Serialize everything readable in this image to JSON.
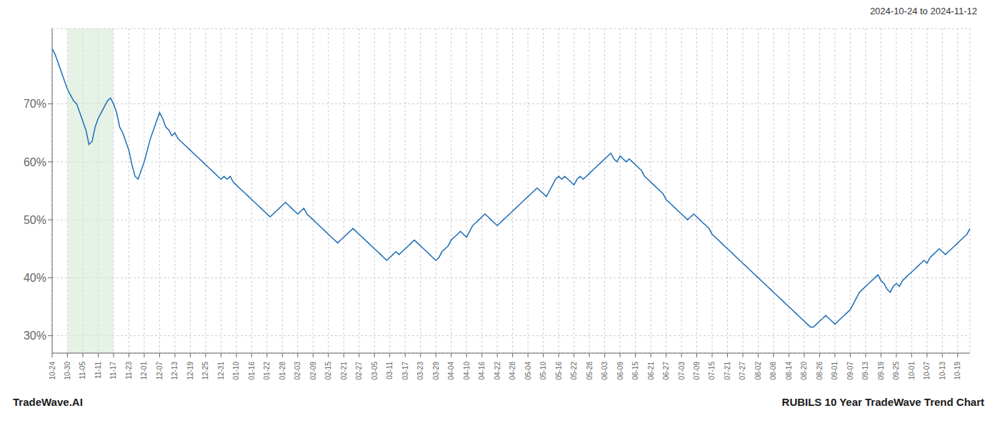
{
  "chart_data": {
    "type": "line",
    "title": "2024-10-24 to 2024-11-12",
    "annotations": [
      {
        "text": "TradeWave.AI",
        "position": "bottom left"
      },
      {
        "text": "RUBILS 10 Year TradeWave Trend Chart",
        "position": "bottom right"
      }
    ],
    "x": [
      0,
      1,
      2,
      3,
      4,
      5,
      6,
      7,
      8,
      9,
      10,
      11,
      12,
      13,
      14,
      15,
      16,
      17,
      18,
      19,
      20,
      21,
      22,
      23,
      24,
      25,
      26,
      27,
      28,
      29,
      30,
      31,
      32,
      33,
      34,
      35,
      36,
      37,
      38,
      39,
      40,
      41,
      42,
      43,
      44,
      45,
      46,
      47,
      48,
      49,
      50,
      51,
      52,
      53,
      54,
      55,
      56,
      57,
      58,
      59,
      60,
      61,
      62,
      63,
      64,
      65,
      66,
      67,
      68,
      69,
      70,
      71,
      72,
      73,
      74,
      75,
      76,
      77,
      78,
      79,
      80,
      81,
      82,
      83,
      84,
      85,
      86,
      87,
      88,
      89,
      90,
      91,
      92,
      93,
      94,
      95,
      96,
      97,
      98,
      99,
      100,
      101,
      102,
      103,
      104,
      105,
      106,
      107,
      108,
      109,
      110,
      111,
      112,
      113,
      114,
      115,
      116,
      117,
      118,
      119,
      120,
      121,
      122,
      123,
      124,
      125,
      126,
      127,
      128,
      129,
      130,
      131,
      132,
      133,
      134,
      135,
      136,
      137,
      138,
      139,
      140,
      141,
      142,
      143,
      144,
      145,
      146,
      147,
      148,
      149,
      150,
      151,
      152,
      153,
      154,
      155,
      156,
      157,
      158,
      159,
      160,
      161,
      162,
      163,
      164,
      165,
      166,
      167,
      168,
      169,
      170,
      171,
      172,
      173,
      174,
      175,
      176,
      177,
      178,
      179,
      180,
      181,
      182,
      183,
      184,
      185,
      186,
      187,
      188,
      189,
      190,
      191,
      192,
      193,
      194,
      195,
      196,
      197,
      198,
      199,
      200,
      201,
      202,
      203,
      204,
      205,
      206,
      207,
      208,
      209,
      210,
      211,
      212,
      213,
      214,
      215,
      216,
      217,
      218,
      219,
      220,
      221,
      222,
      223,
      224,
      225,
      226,
      227,
      228,
      229,
      230,
      231,
      232,
      233,
      234,
      235,
      236,
      237,
      238,
      239,
      240,
      241,
      242,
      243,
      244,
      245,
      246,
      247,
      248,
      249,
      250,
      251,
      252,
      253,
      254,
      255,
      256,
      257,
      258,
      259,
      260,
      261,
      262,
      263,
      264,
      265,
      266,
      267,
      268,
      269,
      270,
      271,
      272,
      273,
      274,
      275,
      276,
      277,
      278,
      279,
      280,
      281,
      282,
      283,
      284,
      285,
      286,
      287,
      288,
      289,
      290,
      291,
      292,
      293,
      294,
      295,
      296,
      297,
      298,
      299
    ],
    "values": [
      79.5,
      78.5,
      77.0,
      75.5,
      74.0,
      72.5,
      71.5,
      70.5,
      70.0,
      68.5,
      67.0,
      65.5,
      63.0,
      63.5,
      66.0,
      67.5,
      68.5,
      69.5,
      70.5,
      71.0,
      70.0,
      68.5,
      66.0,
      65.0,
      63.5,
      62.0,
      59.5,
      57.5,
      57.0,
      58.5,
      60.0,
      62.0,
      64.0,
      65.5,
      67.0,
      68.5,
      67.5,
      66.0,
      65.5,
      64.5,
      65.0,
      64.0,
      63.5,
      63.0,
      62.5,
      62.0,
      61.5,
      61.0,
      60.5,
      60.0,
      59.5,
      59.0,
      58.5,
      58.0,
      57.5,
      57.0,
      57.5,
      57.0,
      57.5,
      56.5,
      56.0,
      55.5,
      55.0,
      54.5,
      54.0,
      53.5,
      53.0,
      52.5,
      52.0,
      51.5,
      51.0,
      50.5,
      51.0,
      51.5,
      52.0,
      52.5,
      53.0,
      52.5,
      52.0,
      51.5,
      51.0,
      51.5,
      52.0,
      51.0,
      50.5,
      50.0,
      49.5,
      49.0,
      48.5,
      48.0,
      47.5,
      47.0,
      46.5,
      46.0,
      46.5,
      47.0,
      47.5,
      48.0,
      48.5,
      48.0,
      47.5,
      47.0,
      46.5,
      46.0,
      45.5,
      45.0,
      44.5,
      44.0,
      43.5,
      43.0,
      43.5,
      44.0,
      44.5,
      44.0,
      44.5,
      45.0,
      45.5,
      46.0,
      46.5,
      46.0,
      45.5,
      45.0,
      44.5,
      44.0,
      43.5,
      43.0,
      43.5,
      44.5,
      45.0,
      45.5,
      46.5,
      47.0,
      47.5,
      48.0,
      47.5,
      47.0,
      48.0,
      49.0,
      49.5,
      50.0,
      50.5,
      51.0,
      50.5,
      50.0,
      49.5,
      49.0,
      49.5,
      50.0,
      50.5,
      51.0,
      51.5,
      52.0,
      52.5,
      53.0,
      53.5,
      54.0,
      54.5,
      55.0,
      55.5,
      55.0,
      54.5,
      54.0,
      55.0,
      56.0,
      57.0,
      57.5,
      57.0,
      57.5,
      57.0,
      56.5,
      56.0,
      57.0,
      57.5,
      57.0,
      57.5,
      58.0,
      58.5,
      59.0,
      59.5,
      60.0,
      60.5,
      61.0,
      61.5,
      60.5,
      60.0,
      61.0,
      60.5,
      60.0,
      60.5,
      60.0,
      59.5,
      59.0,
      58.5,
      57.5,
      57.0,
      56.5,
      56.0,
      55.5,
      55.0,
      54.5,
      53.5,
      53.0,
      52.5,
      52.0,
      51.5,
      51.0,
      50.5,
      50.0,
      50.5,
      51.0,
      50.5,
      50.0,
      49.5,
      49.0,
      48.5,
      47.5,
      47.0,
      46.5,
      46.0,
      45.5,
      45.0,
      44.5,
      44.0,
      43.5,
      43.0,
      42.5,
      42.0,
      41.5,
      41.0,
      40.5,
      40.0,
      39.5,
      39.0,
      38.5,
      38.0,
      37.5,
      37.0,
      36.5,
      36.0,
      35.5,
      35.0,
      34.5,
      34.0,
      33.5,
      33.0,
      32.5,
      32.0,
      31.5,
      31.5,
      32.0,
      32.5,
      33.0,
      33.5,
      33.0,
      32.5,
      32.0,
      32.5,
      33.0,
      33.5,
      34.0,
      34.5,
      35.5,
      36.5,
      37.5,
      38.0,
      38.5,
      39.0,
      39.5,
      40.0,
      40.5,
      39.5,
      39.0,
      38.0,
      37.5,
      38.5,
      39.0,
      38.5,
      39.5,
      40.0,
      40.5,
      41.0,
      41.5,
      42.0,
      42.5,
      43.0,
      42.5,
      43.5,
      44.0,
      44.5,
      45.0,
      44.5,
      44.0,
      44.5,
      45.0,
      45.5,
      46.0,
      46.5,
      47.0,
      47.5,
      48.5
    ],
    "color": "#1a6cb5",
    "xlim": [
      0,
      299
    ],
    "xticks": [
      {
        "value": 0,
        "label": "10-24"
      },
      {
        "value": 5,
        "label": "10-30"
      },
      {
        "value": 10,
        "label": "11-05"
      },
      {
        "value": 15,
        "label": "11-11"
      },
      {
        "value": 20,
        "label": "11-17"
      },
      {
        "value": 25,
        "label": "11-23"
      },
      {
        "value": 30,
        "label": "12-01"
      },
      {
        "value": 35,
        "label": "12-07"
      },
      {
        "value": 40,
        "label": "12-13"
      },
      {
        "value": 45,
        "label": "12-19"
      },
      {
        "value": 50,
        "label": "12-25"
      },
      {
        "value": 55,
        "label": "12-31"
      },
      {
        "value": 60,
        "label": "01-10"
      },
      {
        "value": 65,
        "label": "01-16"
      },
      {
        "value": 70,
        "label": "01-22"
      },
      {
        "value": 75,
        "label": "01-28"
      },
      {
        "value": 80,
        "label": "02-03"
      },
      {
        "value": 85,
        "label": "02-09"
      },
      {
        "value": 90,
        "label": "02-15"
      },
      {
        "value": 95,
        "label": "02-21"
      },
      {
        "value": 100,
        "label": "02-27"
      },
      {
        "value": 105,
        "label": "03-05"
      },
      {
        "value": 110,
        "label": "03-11"
      },
      {
        "value": 115,
        "label": "03-17"
      },
      {
        "value": 120,
        "label": "03-23"
      },
      {
        "value": 125,
        "label": "03-29"
      },
      {
        "value": 130,
        "label": "04-04"
      },
      {
        "value": 135,
        "label": "04-10"
      },
      {
        "value": 140,
        "label": "04-16"
      },
      {
        "value": 145,
        "label": "04-22"
      },
      {
        "value": 150,
        "label": "04-28"
      },
      {
        "value": 155,
        "label": "05-04"
      },
      {
        "value": 160,
        "label": "05-10"
      },
      {
        "value": 165,
        "label": "05-16"
      },
      {
        "value": 170,
        "label": "05-22"
      },
      {
        "value": 175,
        "label": "05-28"
      },
      {
        "value": 180,
        "label": "06-03"
      },
      {
        "value": 185,
        "label": "06-09"
      },
      {
        "value": 190,
        "label": "06-15"
      },
      {
        "value": 195,
        "label": "06-21"
      },
      {
        "value": 200,
        "label": "06-27"
      },
      {
        "value": 205,
        "label": "07-03"
      },
      {
        "value": 210,
        "label": "07-09"
      },
      {
        "value": 215,
        "label": "07-15"
      },
      {
        "value": 220,
        "label": "07-21"
      },
      {
        "value": 225,
        "label": "07-27"
      },
      {
        "value": 230,
        "label": "08-02"
      },
      {
        "value": 235,
        "label": "08-08"
      },
      {
        "value": 240,
        "label": "08-14"
      },
      {
        "value": 245,
        "label": "08-20"
      },
      {
        "value": 250,
        "label": "08-26"
      },
      {
        "value": 255,
        "label": "09-01"
      },
      {
        "value": 260,
        "label": "09-07"
      },
      {
        "value": 265,
        "label": "09-13"
      },
      {
        "value": 270,
        "label": "09-19"
      },
      {
        "value": 275,
        "label": "09-25"
      },
      {
        "value": 280,
        "label": "10-01"
      },
      {
        "value": 285,
        "label": "10-07"
      },
      {
        "value": 290,
        "label": "10-13"
      },
      {
        "value": 295,
        "label": "10-19"
      }
    ],
    "ylim": [
      27,
      83
    ],
    "yticks": [
      {
        "value": 30,
        "label": "30%"
      },
      {
        "value": 40,
        "label": "40%"
      },
      {
        "value": 50,
        "label": "50%"
      },
      {
        "value": 60,
        "label": "60%"
      },
      {
        "value": 70,
        "label": "70%"
      }
    ],
    "grid": true,
    "highlight": {
      "x": [
        5,
        20
      ],
      "color": "#d6ead6"
    }
  }
}
